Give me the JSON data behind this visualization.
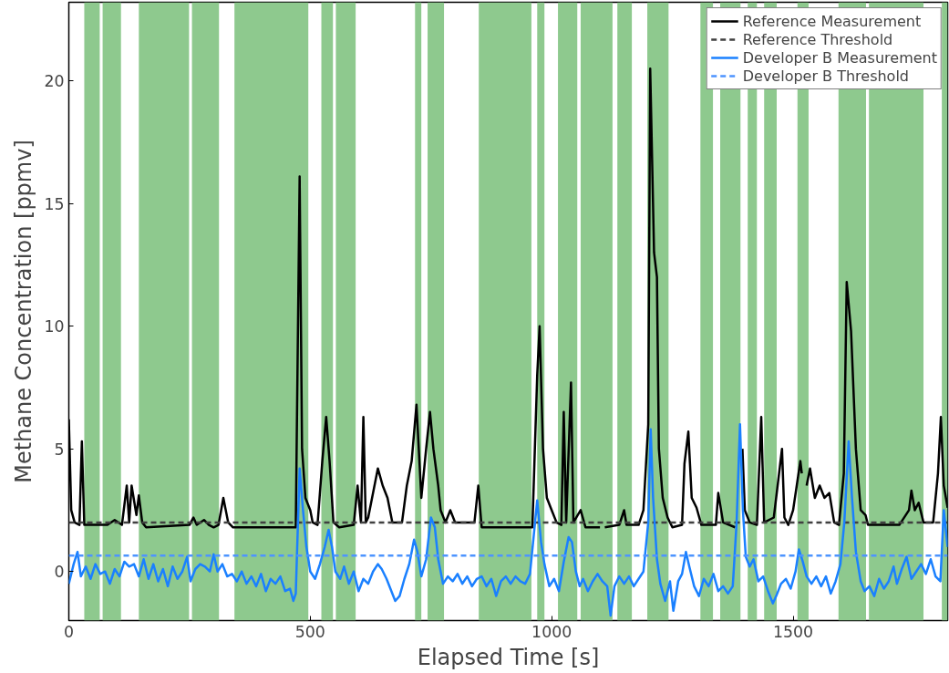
{
  "chart_data": {
    "type": "line",
    "xlabel": "Elapsed Time [s]",
    "ylabel": "Methane Concentration [ppmv]",
    "xlim": [
      0,
      1820
    ],
    "ylim": [
      -2,
      23.2
    ],
    "xticks": [
      0,
      500,
      1000,
      1500
    ],
    "yticks": [
      0,
      5,
      10,
      15,
      20
    ],
    "grid": false,
    "legend": "top right",
    "series": [
      {
        "name": "Reference Measurement",
        "color": "#000000",
        "line_style": "solid",
        "x": [
          0,
          5,
          12,
          22,
          27,
          32,
          80,
          95,
          110,
          120,
          125,
          130,
          140,
          145,
          152,
          160,
          250,
          258,
          265,
          280,
          290,
          300,
          310,
          320,
          330,
          340,
          470,
          478,
          483,
          490,
          500,
          505,
          515,
          525,
          533,
          540,
          548,
          560,
          590,
          598,
          605,
          610,
          615,
          620,
          640,
          650,
          660,
          670,
          690,
          700,
          710,
          720,
          730,
          740,
          748,
          755,
          765,
          770,
          780,
          790,
          800,
          820,
          840,
          848,
          855,
          960,
          970,
          975,
          982,
          990,
          1000,
          1010,
          1020,
          1025,
          1030,
          1040,
          1045,
          1060,
          1070,
          1100,
          1104,
          1110,
          1140,
          1150,
          1155,
          1180,
          1190,
          1200,
          1204,
          1212,
          1218,
          1222,
          1230,
          1240,
          1250,
          1270,
          1275,
          1283,
          1290,
          1300,
          1310,
          1340,
          1345,
          1355,
          1380,
          1388,
          1395,
          1400,
          1410,
          1425,
          1434,
          1440,
          1460,
          1477,
          1482,
          1490,
          1500,
          1515,
          1518,
          1523,
          1528,
          1535,
          1545,
          1555,
          1565,
          1575,
          1585,
          1595,
          1605,
          1611,
          1620,
          1630,
          1640,
          1650,
          1655,
          1700,
          1720,
          1740,
          1745,
          1752,
          1760,
          1770,
          1790,
          1800,
          1806,
          1812,
          1820
        ],
        "values": [
          6.2,
          2.5,
          2.0,
          1.9,
          5.3,
          1.9,
          1.9,
          2.1,
          1.9,
          3.5,
          2.0,
          3.5,
          2.3,
          3.1,
          2.0,
          1.8,
          1.9,
          2.2,
          1.9,
          2.1,
          1.9,
          1.8,
          1.9,
          3.0,
          2.0,
          1.8,
          1.8,
          16.1,
          5.0,
          3.0,
          2.5,
          2.0,
          1.9,
          4.5,
          6.3,
          4.5,
          2.0,
          1.8,
          1.9,
          3.5,
          2.0,
          6.3,
          2.0,
          2.2,
          4.2,
          3.5,
          3.0,
          2.0,
          2.0,
          3.5,
          4.5,
          6.8,
          3.0,
          5.0,
          6.5,
          5.0,
          3.5,
          2.5,
          2.0,
          2.5,
          2.0,
          2.0,
          2.0,
          3.5,
          1.8,
          1.8,
          8.0,
          10.0,
          5.0,
          3.0,
          2.5,
          2.0,
          1.9,
          6.5,
          2.0,
          7.7,
          2.0,
          2.5,
          1.8,
          1.8,
          null,
          1.8,
          1.9,
          2.5,
          1.9,
          1.9,
          2.5,
          6.0,
          20.5,
          13.0,
          12.0,
          5.0,
          3.0,
          2.2,
          1.8,
          1.9,
          4.4,
          5.7,
          3.0,
          2.6,
          1.9,
          1.9,
          3.2,
          2.0,
          1.8,
          null,
          5.0,
          2.5,
          2.0,
          1.9,
          6.3,
          2.0,
          2.2,
          5.0,
          2.2,
          1.9,
          2.5,
          4.5,
          4.0,
          null,
          3.5,
          4.2,
          3.0,
          3.5,
          3.0,
          3.2,
          2.0,
          1.9,
          4.0,
          11.8,
          9.8,
          5.0,
          2.5,
          2.3,
          1.9,
          1.9,
          1.9,
          2.5,
          3.3,
          2.5,
          2.8,
          2.0,
          2.0,
          4.0,
          6.3,
          3.5,
          2.6
        ]
      },
      {
        "name": "Reference Threshold",
        "color": "#404040",
        "line_style": "dashed",
        "x": [
          0,
          1820
        ],
        "values": [
          2.0,
          2.0
        ]
      },
      {
        "name": "Developer B Measurement",
        "color": "#1a80ff",
        "line_style": "solid",
        "x": [
          0,
          10,
          18,
          25,
          35,
          45,
          55,
          65,
          75,
          85,
          95,
          105,
          115,
          125,
          135,
          145,
          155,
          165,
          175,
          185,
          195,
          205,
          215,
          225,
          235,
          245,
          252,
          262,
          272,
          282,
          292,
          300,
          308,
          318,
          328,
          338,
          348,
          358,
          368,
          378,
          388,
          398,
          408,
          418,
          428,
          438,
          448,
          458,
          465,
          470,
          478,
          485,
          492,
          500,
          510,
          520,
          530,
          538,
          545,
          552,
          562,
          570,
          580,
          590,
          600,
          610,
          620,
          630,
          640,
          648,
          658,
          668,
          676,
          685,
          695,
          705,
          715,
          722,
          730,
          740,
          750,
          758,
          765,
          775,
          785,
          795,
          805,
          815,
          825,
          835,
          845,
          855,
          865,
          875,
          885,
          895,
          905,
          915,
          925,
          935,
          945,
          955,
          963,
          970,
          978,
          985,
          995,
          1005,
          1015,
          1025,
          1035,
          1042,
          1050,
          1058,
          1065,
          1075,
          1085,
          1095,
          1105,
          1115,
          1122,
          1130,
          1140,
          1150,
          1160,
          1170,
          1180,
          1190,
          1200,
          1205,
          1210,
          1218,
          1225,
          1235,
          1245,
          1252,
          1262,
          1270,
          1278,
          1285,
          1295,
          1305,
          1315,
          1325,
          1335,
          1345,
          1355,
          1365,
          1375,
          1383,
          1390,
          1396,
          1402,
          1410,
          1418,
          1428,
          1438,
          1448,
          1458,
          1465,
          1475,
          1485,
          1495,
          1505,
          1512,
          1520,
          1528,
          1538,
          1548,
          1558,
          1568,
          1578,
          1588,
          1598,
          1606,
          1615,
          1622,
          1630,
          1640,
          1648,
          1658,
          1668,
          1678,
          1688,
          1698,
          1708,
          1715,
          1725,
          1735,
          1745,
          1755,
          1765,
          1775,
          1785,
          1795,
          1805,
          1812,
          1820
        ],
        "values": [
          -0.5,
          0.3,
          0.8,
          -0.2,
          0.2,
          -0.3,
          0.3,
          -0.1,
          0.0,
          -0.5,
          0.1,
          -0.2,
          0.4,
          0.2,
          0.3,
          -0.2,
          0.5,
          -0.3,
          0.3,
          -0.4,
          0.1,
          -0.6,
          0.2,
          -0.3,
          0.0,
          0.6,
          -0.4,
          0.1,
          0.3,
          0.2,
          0.0,
          0.7,
          0.0,
          0.3,
          -0.2,
          -0.1,
          -0.4,
          0.0,
          -0.5,
          -0.2,
          -0.6,
          -0.1,
          -0.8,
          -0.3,
          -0.5,
          -0.2,
          -0.8,
          -0.7,
          -1.2,
          -0.9,
          4.2,
          2.5,
          1.0,
          0.0,
          -0.3,
          0.3,
          1.0,
          1.7,
          1.0,
          0.0,
          -0.3,
          0.2,
          -0.5,
          0.0,
          -0.8,
          -0.3,
          -0.5,
          0.0,
          0.3,
          0.1,
          -0.3,
          -0.8,
          -1.2,
          -1.0,
          -0.3,
          0.3,
          1.3,
          0.8,
          -0.2,
          0.5,
          2.2,
          1.8,
          0.5,
          -0.5,
          -0.2,
          -0.4,
          -0.1,
          -0.5,
          -0.2,
          -0.6,
          -0.3,
          -0.2,
          -0.6,
          -0.3,
          -1.0,
          -0.4,
          -0.2,
          -0.5,
          -0.2,
          -0.4,
          -0.5,
          -0.1,
          1.5,
          2.9,
          1.2,
          0.3,
          -0.6,
          -0.3,
          -0.8,
          0.4,
          1.4,
          1.2,
          0.0,
          -0.6,
          -0.3,
          -0.8,
          -0.4,
          -0.1,
          -0.4,
          -0.6,
          -1.8,
          -0.6,
          -0.2,
          -0.5,
          -0.2,
          -0.6,
          -0.3,
          0.0,
          2.0,
          5.8,
          3.0,
          0.5,
          -0.5,
          -1.2,
          -0.4,
          -1.6,
          -0.4,
          -0.1,
          0.8,
          0.2,
          -0.6,
          -1.0,
          -0.3,
          -0.6,
          -0.1,
          -0.8,
          -0.6,
          -0.9,
          -0.6,
          2.0,
          6.0,
          2.5,
          0.6,
          0.2,
          0.5,
          -0.4,
          -0.2,
          -0.8,
          -1.3,
          -1.0,
          -0.5,
          -0.3,
          -0.7,
          0.0,
          0.9,
          0.4,
          -0.2,
          -0.5,
          -0.2,
          -0.6,
          -0.2,
          -0.9,
          -0.4,
          0.3,
          2.0,
          5.3,
          3.0,
          0.8,
          -0.4,
          -0.8,
          -0.6,
          -1.0,
          -0.3,
          -0.7,
          -0.4,
          0.2,
          -0.5,
          0.1,
          0.6,
          -0.3,
          0.0,
          0.3,
          -0.1,
          0.5,
          -0.2,
          -0.4,
          2.5,
          1.0
        ]
      },
      {
        "name": "Developer B Threshold",
        "color": "#4d94ff",
        "line_style": "dashed",
        "x": [
          0,
          1820
        ],
        "values": [
          0.65,
          0.65
        ]
      }
    ],
    "bands": [
      {
        "axis": "x",
        "from": 32,
        "to": 64,
        "color": "#8ec98e"
      },
      {
        "axis": "x",
        "from": 70,
        "to": 108,
        "color": "#8ec98e"
      },
      {
        "axis": "x",
        "from": 145,
        "to": 249,
        "color": "#8ec98e"
      },
      {
        "axis": "x",
        "from": 255,
        "to": 311,
        "color": "#8ec98e"
      },
      {
        "axis": "x",
        "from": 343,
        "to": 496,
        "color": "#8ec98e"
      },
      {
        "axis": "x",
        "from": 523,
        "to": 547,
        "color": "#8ec98e"
      },
      {
        "axis": "x",
        "from": 553,
        "to": 594,
        "color": "#8ec98e"
      },
      {
        "axis": "x",
        "from": 717,
        "to": 730,
        "color": "#8ec98e"
      },
      {
        "axis": "x",
        "from": 743,
        "to": 777,
        "color": "#8ec98e"
      },
      {
        "axis": "x",
        "from": 849,
        "to": 958,
        "color": "#8ec98e"
      },
      {
        "axis": "x",
        "from": 970,
        "to": 985,
        "color": "#8ec98e"
      },
      {
        "axis": "x",
        "from": 1013,
        "to": 1053,
        "color": "#8ec98e"
      },
      {
        "axis": "x",
        "from": 1060,
        "to": 1126,
        "color": "#8ec98e"
      },
      {
        "axis": "x",
        "from": 1136,
        "to": 1166,
        "color": "#8ec98e"
      },
      {
        "axis": "x",
        "from": 1198,
        "to": 1242,
        "color": "#8ec98e"
      },
      {
        "axis": "x",
        "from": 1308,
        "to": 1334,
        "color": "#8ec98e"
      },
      {
        "axis": "x",
        "from": 1349,
        "to": 1391,
        "color": "#8ec98e"
      },
      {
        "axis": "x",
        "from": 1406,
        "to": 1425,
        "color": "#8ec98e"
      },
      {
        "axis": "x",
        "from": 1440,
        "to": 1466,
        "color": "#8ec98e"
      },
      {
        "axis": "x",
        "from": 1509,
        "to": 1532,
        "color": "#8ec98e"
      },
      {
        "axis": "x",
        "from": 1594,
        "to": 1651,
        "color": "#8ec98e"
      },
      {
        "axis": "x",
        "from": 1657,
        "to": 1770,
        "color": "#8ec98e"
      },
      {
        "axis": "x",
        "from": 1808,
        "to": 1820,
        "color": "#8ec98e"
      }
    ]
  }
}
